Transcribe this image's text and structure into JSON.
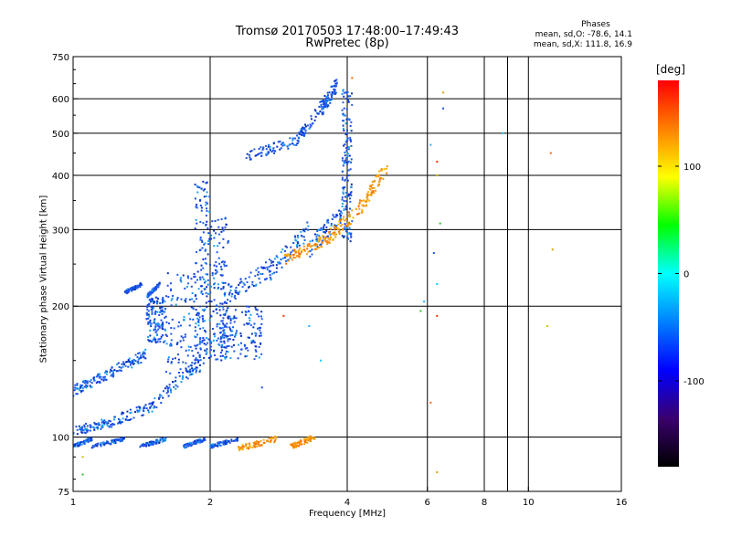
{
  "chart_data": {
    "type": "scatter",
    "title": "Tromsø 20170503 17:48:00–17:49:43",
    "subtitle": "RwPretec (8p)",
    "xlabel": "Frequency [MHz]",
    "ylabel": "Stationary phase Virtual Height [km]",
    "x_scale": "log",
    "y_scale": "log",
    "xlim": [
      1,
      16
    ],
    "ylim": [
      75,
      750
    ],
    "x_ticks": [
      1,
      2,
      4,
      6,
      8,
      10,
      16
    ],
    "y_ticks": [
      75,
      100,
      200,
      300,
      400,
      500,
      600,
      750
    ],
    "x_gridlines": [
      2,
      4,
      6,
      8,
      9,
      10
    ],
    "y_gridlines": [
      100,
      200,
      300,
      400,
      500,
      600
    ],
    "grid": true,
    "phases": {
      "title": "Phases",
      "o_text": "mean, sd,O: -78.6, 14.1",
      "x_text": "mean, sd,X: 111.8, 16.9"
    },
    "colorbar": {
      "label": "[deg]",
      "range": [
        -180,
        180
      ],
      "ticks": [
        100,
        0,
        -100
      ],
      "colors": [
        "#000000",
        "#3a006f",
        "#0000ff",
        "#0080ff",
        "#00ffff",
        "#00ff00",
        "#ffff00",
        "#ff8000",
        "#ff0000"
      ]
    },
    "colors": {
      "o_trace": "#1a50e6",
      "o_trace_light": "#1aa0f0",
      "x_trace": "#f09a10",
      "x_trace_hi": "#ff6a00"
    },
    "series": [
      {
        "segments": [
          {
            "x": [
              1.0,
              1.2
            ],
            "y": [
              103,
              108
            ],
            "mode": "band",
            "spread": 0.025
          },
          {
            "x": [
              1.2,
              1.5
            ],
            "y": [
              108,
              118
            ],
            "mode": "band",
            "spread": 0.03
          },
          {
            "x": [
              1.5,
              1.9
            ],
            "y": [
              118,
              150
            ],
            "mode": "band",
            "spread": 0.035
          },
          {
            "x": [
              1.0,
              1.2
            ],
            "y": [
              128,
              140
            ],
            "mode": "band",
            "spread": 0.03
          },
          {
            "x": [
              1.2,
              1.45
            ],
            "y": [
              140,
              155
            ],
            "mode": "band",
            "spread": 0.03
          },
          {
            "x": [
              1.45,
              1.6
            ],
            "y": [
              165,
              200
            ],
            "mode": "cloud",
            "ymax": 210
          },
          {
            "x": [
              1.6,
              1.95
            ],
            "y": [
              140,
              230
            ],
            "mode": "cloud",
            "ymax": 240
          },
          {
            "x": [
              1.85,
              2.0
            ],
            "y": [
              150,
              280
            ],
            "mode": "cloud",
            "ymax": 390
          },
          {
            "x": [
              1.0,
              1.1
            ],
            "y": [
              95,
              99
            ],
            "mode": "band",
            "spread": 0.01
          },
          {
            "x": [
              1.1,
              1.3
            ],
            "y": [
              95,
              99
            ],
            "mode": "band",
            "spread": 0.01
          },
          {
            "x": [
              1.4,
              1.6
            ],
            "y": [
              95,
              99
            ],
            "mode": "band",
            "spread": 0.01
          },
          {
            "x": [
              1.75,
              1.95
            ],
            "y": [
              95,
              99
            ],
            "mode": "band",
            "spread": 0.01
          },
          {
            "x": [
              1.3,
              1.42
            ],
            "y": [
              215,
              225
            ],
            "mode": "band",
            "spread": 0.01
          },
          {
            "x": [
              1.45,
              1.55
            ],
            "y": [
              210,
              225
            ],
            "mode": "band",
            "spread": 0.01
          },
          {
            "x": [
              2.0,
              2.2
            ],
            "y": [
              150,
              300
            ],
            "mode": "cloud",
            "ymax": 320
          },
          {
            "x": [
              2.15,
              2.7
            ],
            "y": [
              210,
              245
            ],
            "mode": "band",
            "spread": 0.05
          },
          {
            "x": [
              2.7,
              3.3
            ],
            "y": [
              240,
              300
            ],
            "mode": "band",
            "spread": 0.05
          },
          {
            "x": [
              3.3,
              3.9
            ],
            "y": [
              270,
              330
            ],
            "mode": "band",
            "spread": 0.05
          },
          {
            "x": [
              3.9,
              4.1
            ],
            "y": [
              280,
              560
            ],
            "mode": "cloud",
            "ymax": 640
          },
          {
            "x": [
              2.1,
              2.6
            ],
            "y": [
              150,
              200
            ],
            "mode": "cloud",
            "ymax": 200
          },
          {
            "x": [
              2.0,
              2.3
            ],
            "y": [
              95,
              99
            ],
            "mode": "band",
            "spread": 0.01
          },
          {
            "x": [
              2.4,
              3.1
            ],
            "y": [
              440,
              480
            ],
            "mode": "band",
            "spread": 0.03
          },
          {
            "x": [
              3.1,
              3.6
            ],
            "y": [
              480,
              600
            ],
            "mode": "band",
            "spread": 0.03
          },
          {
            "x": [
              3.5,
              3.8
            ],
            "y": [
              560,
              650
            ],
            "mode": "band",
            "spread": 0.04
          }
        ]
      },
      {
        "segments": [
          {
            "x": [
              2.9,
              3.6
            ],
            "y": [
              255,
              285
            ],
            "mode": "band",
            "spread": 0.03
          },
          {
            "x": [
              3.6,
              4.3
            ],
            "y": [
              285,
              340
            ],
            "mode": "band",
            "spread": 0.04
          },
          {
            "x": [
              4.3,
              4.9
            ],
            "y": [
              340,
              420
            ],
            "mode": "band",
            "spread": 0.04
          },
          {
            "x": [
              2.3,
              2.8
            ],
            "y": [
              94,
              99
            ],
            "mode": "band",
            "spread": 0.015
          },
          {
            "x": [
              3.0,
              3.4
            ],
            "y": [
              95,
              100
            ],
            "mode": "band",
            "spread": 0.015
          }
        ]
      },
      {
        "points": [
          [
            4.1,
            670
          ],
          [
            6.5,
            620
          ],
          [
            6.5,
            570
          ],
          [
            8.8,
            500
          ],
          [
            6.1,
            470
          ],
          [
            6.3,
            430
          ],
          [
            6.3,
            400
          ],
          [
            6.4,
            310
          ],
          [
            11.2,
            450
          ],
          [
            11.3,
            270
          ],
          [
            6.2,
            265
          ],
          [
            6.3,
            225
          ],
          [
            5.9,
            205
          ],
          [
            6.3,
            190
          ],
          [
            11.0,
            180
          ],
          [
            5.8,
            195
          ],
          [
            6.1,
            120
          ],
          [
            6.3,
            83
          ],
          [
            2.6,
            130
          ],
          [
            3.5,
            150
          ],
          [
            3.3,
            180
          ],
          [
            2.9,
            190
          ],
          [
            1.05,
            90
          ],
          [
            1.05,
            82
          ]
        ]
      }
    ]
  }
}
